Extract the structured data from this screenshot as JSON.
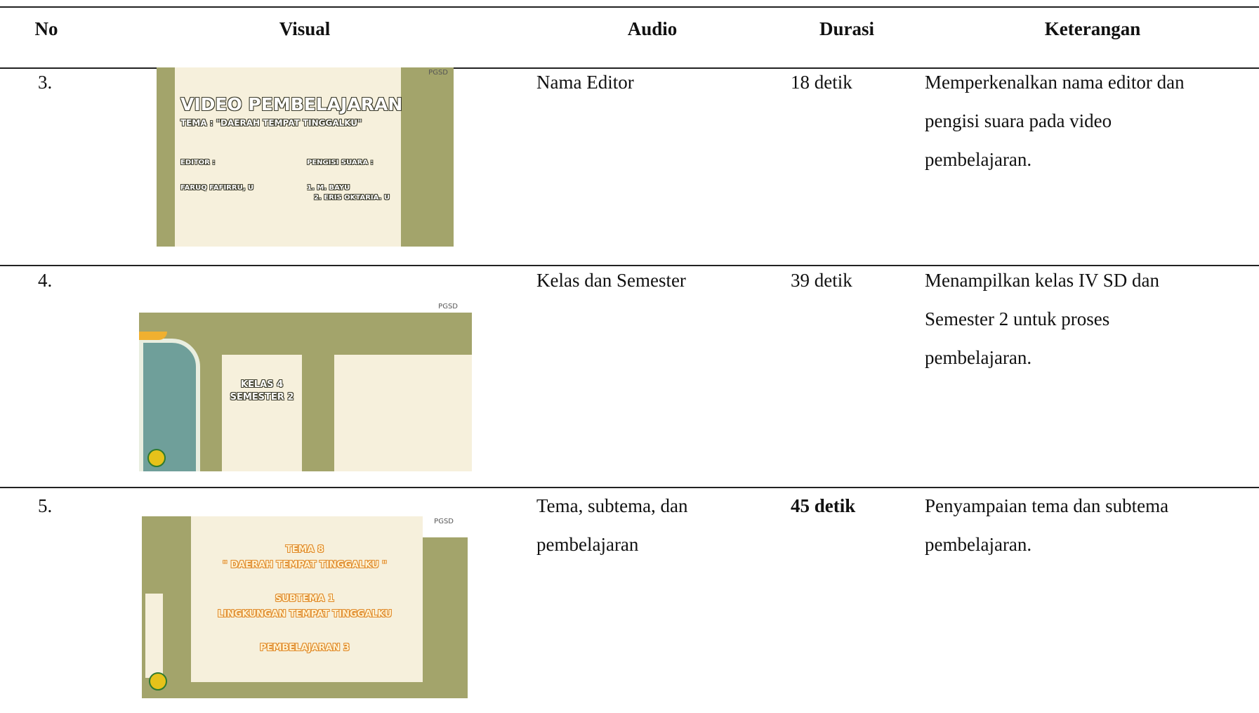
{
  "table": {
    "headers": [
      "No",
      "Visual",
      "Audio",
      "Durasi",
      "Keterangan"
    ],
    "rows": [
      {
        "no": "3.",
        "visual": {
          "logo": "PGSD",
          "lines": [
            "VIDEO PEMBELAJARAN",
            "TEMA : \"DAERAH TEMPAT TINGGALKU\"",
            "EDITOR :",
            "PENGISI SUARA :",
            "FARUQ FAFIRRU, U",
            "1. M. BAYU",
            "2. ERIS OKTARIA. U"
          ]
        },
        "audio": [
          "Nama Editor"
        ],
        "durasi": "18 detik",
        "keterangan": [
          "Memperkenalkan nama editor dan",
          "pengisi suara pada video",
          "pembelajaran."
        ]
      },
      {
        "no": "4.",
        "visual": {
          "logo": "PGSD",
          "lines": [
            "KELAS 4",
            "SEMESTER 2"
          ]
        },
        "audio": [
          "Kelas dan Semester"
        ],
        "durasi": "39 detik",
        "keterangan": [
          "Menampilkan kelas IV SD dan",
          "Semester 2 untuk proses",
          "pembelajaran."
        ]
      },
      {
        "no": "5.",
        "visual": {
          "logo": "PGSD",
          "lines": [
            "TEMA 8",
            "\" DAERAH TEMPAT TINGGALKU \"",
            "SUBTEMA 1",
            "LINGKUNGAN TEMPAT TINGGALKU",
            "PEMBELAJARAN 3"
          ]
        },
        "audio": [
          "Tema, subtema, dan",
          "pembelajaran"
        ],
        "durasi": "45 detik",
        "keterangan": [
          "Penyampaian tema dan subtema",
          "pembelajaran."
        ]
      }
    ]
  }
}
